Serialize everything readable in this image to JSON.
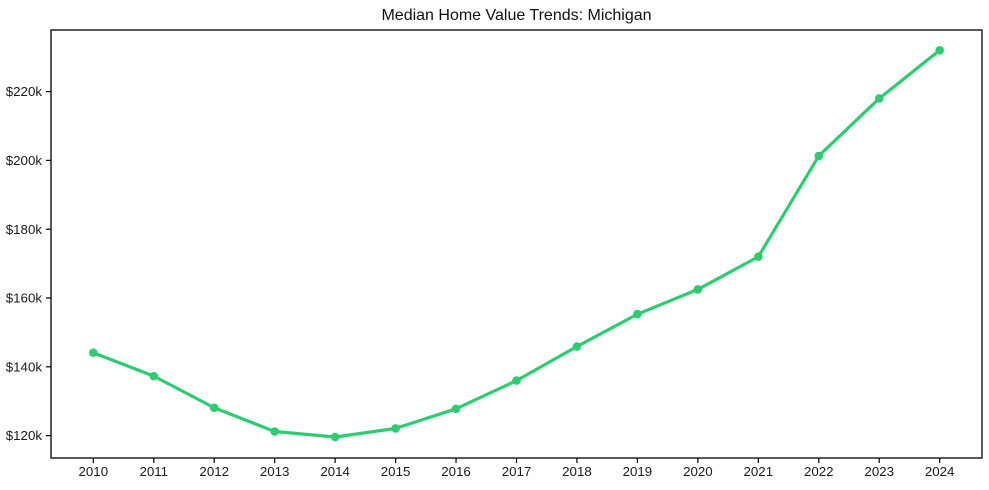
{
  "chart_data": {
    "type": "line",
    "title": "Median Home Value Trends: Michigan",
    "x": [
      2010,
      2011,
      2012,
      2013,
      2014,
      2015,
      2016,
      2017,
      2018,
      2019,
      2020,
      2021,
      2022,
      2023,
      2024
    ],
    "series": [
      {
        "name": "Median Home Value",
        "color": "#2ecc71",
        "values_k": [
          144.1,
          137.3,
          128.1,
          121.2,
          119.6,
          122.1,
          127.8,
          136.0,
          145.9,
          155.3,
          162.5,
          172.0,
          201.3,
          218.0,
          232.0
        ]
      }
    ],
    "xlabel": "",
    "ylabel": "",
    "x_ticks": [
      {
        "v": 2010,
        "label": "2010"
      },
      {
        "v": 2011,
        "label": "2011"
      },
      {
        "v": 2012,
        "label": "2012"
      },
      {
        "v": 2013,
        "label": "2013"
      },
      {
        "v": 2014,
        "label": "2014"
      },
      {
        "v": 2015,
        "label": "2015"
      },
      {
        "v": 2016,
        "label": "2016"
      },
      {
        "v": 2017,
        "label": "2017"
      },
      {
        "v": 2018,
        "label": "2018"
      },
      {
        "v": 2019,
        "label": "2019"
      },
      {
        "v": 2020,
        "label": "2020"
      },
      {
        "v": 2021,
        "label": "2021"
      },
      {
        "v": 2022,
        "label": "2022"
      },
      {
        "v": 2023,
        "label": "2023"
      },
      {
        "v": 2024,
        "label": "2024"
      }
    ],
    "y_ticks": [
      {
        "v": 120,
        "label": "$120k"
      },
      {
        "v": 140,
        "label": "$140k"
      },
      {
        "v": 160,
        "label": "$160k"
      },
      {
        "v": 180,
        "label": "$180k"
      },
      {
        "v": 200,
        "label": "$200k"
      },
      {
        "v": 220,
        "label": "$220k"
      }
    ],
    "xlim": [
      2009.3,
      2024.7
    ],
    "ylim_k": [
      113.5,
      237.9
    ],
    "grid": false,
    "legend": "none",
    "marker": "circle",
    "line_width": 3.2,
    "marker_radius": 4.3,
    "axis_color": "#000000",
    "text_color": "#1a1a1a",
    "background_color": "#ffffff"
  }
}
